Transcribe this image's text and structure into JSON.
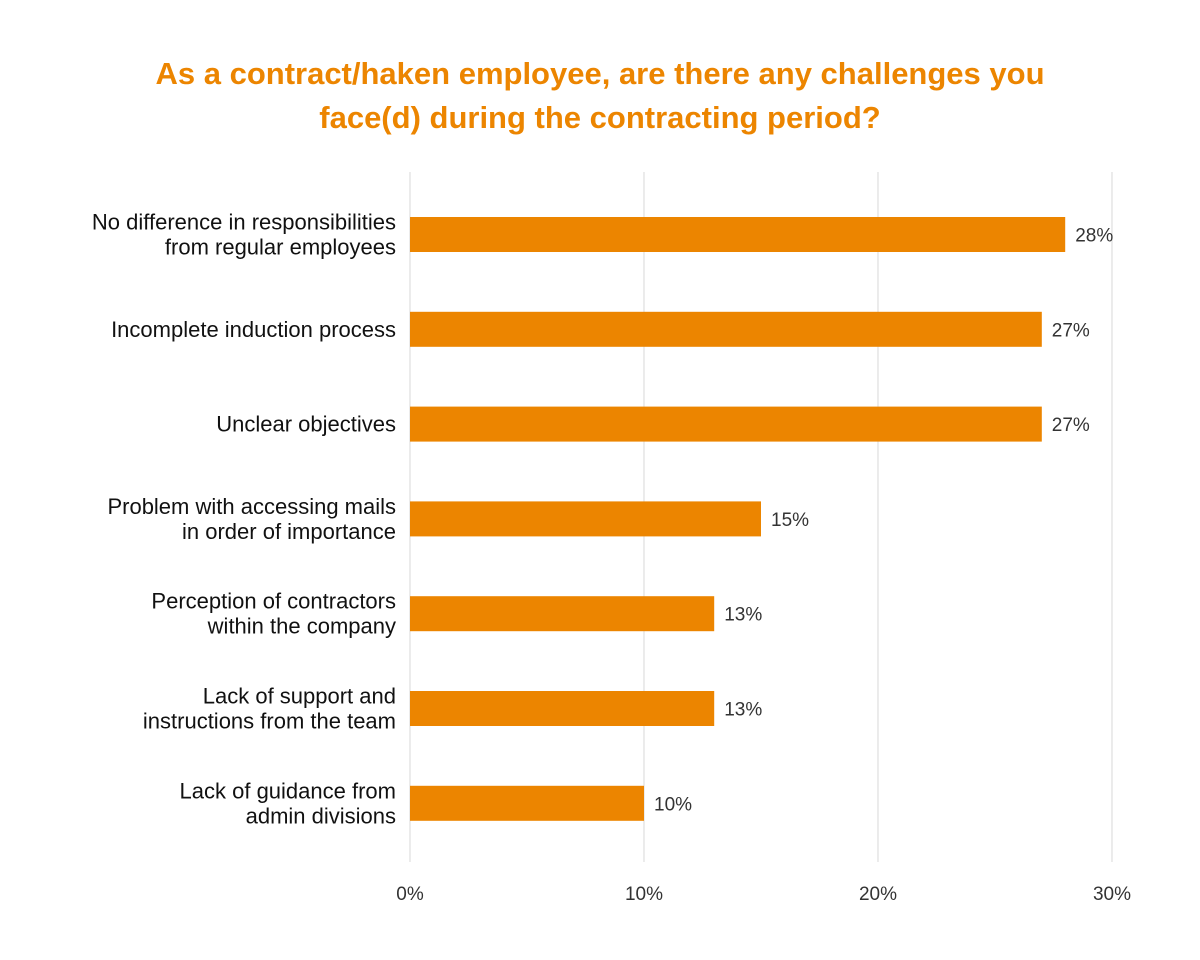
{
  "chart_data": {
    "type": "bar",
    "orientation": "horizontal",
    "title": "As a contract/haken employee, are there any challenges you face(d) during the contracting period?",
    "title_lines": [
      "As a contract/haken employee, are there any challenges you",
      "face(d) during the contracting period?"
    ],
    "categories": [
      [
        "No difference in responsibilities",
        "from regular employees"
      ],
      [
        "Incomplete induction process"
      ],
      [
        "Unclear objectives"
      ],
      [
        "Problem with accessing mails",
        "in order of importance"
      ],
      [
        "Perception of contractors",
        "within the company"
      ],
      [
        "Lack of support and",
        "instructions from the team"
      ],
      [
        "Lack of guidance from",
        "admin divisions"
      ]
    ],
    "values": [
      28,
      27,
      27,
      15,
      13,
      13,
      10
    ],
    "value_labels": [
      "28%",
      "27%",
      "27%",
      "15%",
      "13%",
      "13%",
      "10%"
    ],
    "xlim": [
      0,
      30
    ],
    "xticks": [
      0,
      10,
      20,
      30
    ],
    "xtick_labels": [
      "0%",
      "10%",
      "20%",
      "30%"
    ],
    "xlabel": "",
    "ylabel": "",
    "grid": "vertical",
    "legend": "none",
    "colors": {
      "bar": "#ec8500",
      "title": "#ec8500",
      "grid": "#dedede"
    }
  }
}
